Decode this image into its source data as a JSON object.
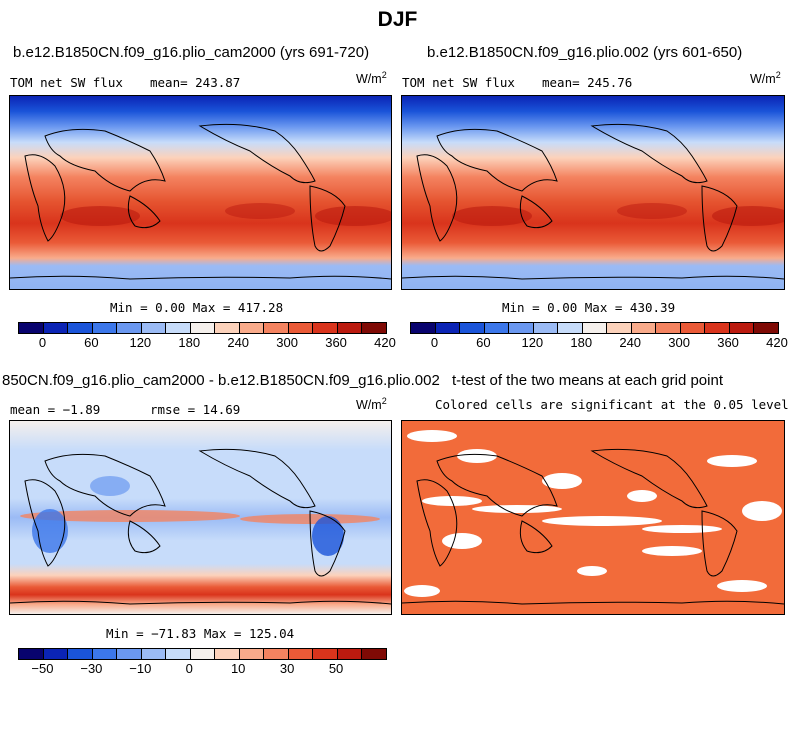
{
  "page_title": "DJF",
  "units_label": "W/m",
  "units_exp": "2",
  "panels": {
    "p1": {
      "title": "b.e12.B1850CN.f09_g16.plio_cam2000 (yrs 691-720)",
      "variable": "TOM net SW flux",
      "mean": "mean= 243.87",
      "minmax": "Min =   0.00 Max = 417.28"
    },
    "p2": {
      "title": "b.e12.B1850CN.f09_g16.plio.002 (yrs 601-650)",
      "variable": "TOM net SW flux",
      "mean": "mean= 245.76",
      "minmax": "Min =   0.00 Max = 430.39"
    },
    "p3": {
      "title": "850CN.f09_g16.plio_cam2000 - b.e12.B1850CN.f09_g16.plio.002",
      "mean": "mean =  −1.89",
      "rmse": "rmse =  14.69",
      "minmax": "Min = −71.83 Max = 125.04"
    },
    "p4": {
      "title": "t-test of the two means at each grid point",
      "subtitle": "Colored cells are significant at the 0.05 level"
    }
  },
  "colorbar_abs": {
    "colors": [
      "#08036e",
      "#0b24b5",
      "#1a54d9",
      "#3c77ea",
      "#6b98f0",
      "#9bbbf5",
      "#c7dcfa",
      "#f5f0ec",
      "#fcd2bb",
      "#f9ab8b",
      "#f48360",
      "#ea5a37",
      "#d9341c",
      "#bb1a0f",
      "#7f0a05"
    ],
    "labels": [
      "0",
      "60",
      "120",
      "180",
      "240",
      "300",
      "360",
      "420"
    ]
  },
  "colorbar_diff": {
    "colors": [
      "#08036e",
      "#0b24b5",
      "#1a54d9",
      "#3c77ea",
      "#6b98f0",
      "#9bbbf5",
      "#c7dcfa",
      "#f5f0ec",
      "#fcd2bb",
      "#f9ab8b",
      "#f48360",
      "#ea5a37",
      "#d9341c",
      "#bb1a0f",
      "#7f0a05"
    ],
    "labels": [
      "−50",
      "−30",
      "−10",
      "0",
      "10",
      "30",
      "50"
    ]
  },
  "significance_color": "#f26b3a"
}
